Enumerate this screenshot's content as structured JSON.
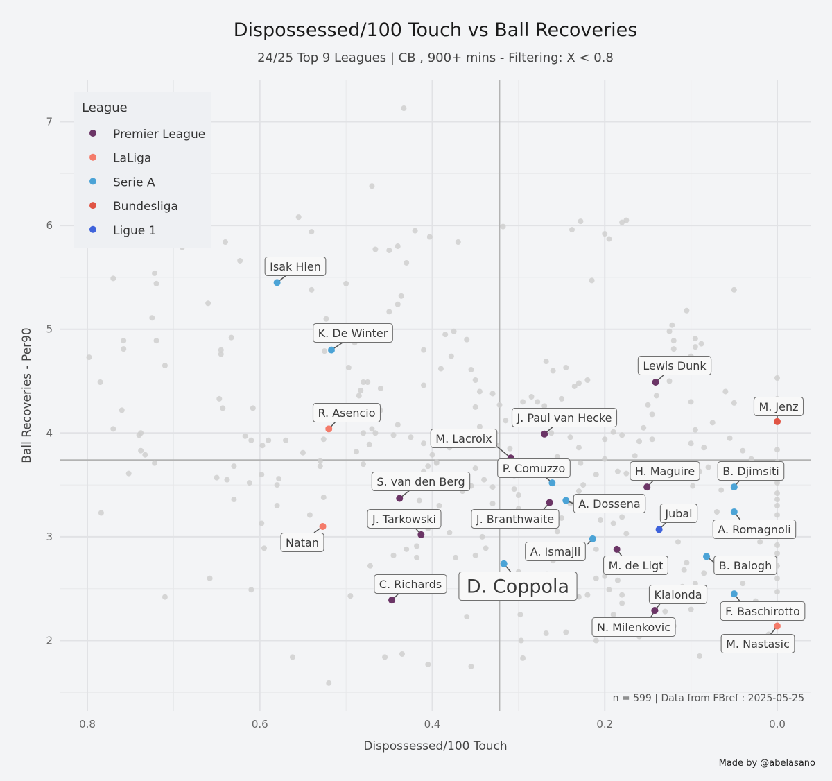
{
  "chart_data": {
    "type": "scatter",
    "title": "Dispossessed/100 Touch  vs  Ball Recoveries",
    "subtitle": "24/25 Top 9 Leagues | CB , 900+ mins - Filtering: X < 0.8",
    "xlabel": "Dispossessed/100 Touch",
    "ylabel": "Ball Recoveries  -  Per90",
    "x_reversed": true,
    "xlim": [
      0.8,
      0.0
    ],
    "ylim": [
      1.5,
      7.3
    ],
    "x_ticks": [
      0.8,
      0.6,
      0.4,
      0.2,
      0.0
    ],
    "x_tick_labels": [
      "0.8",
      "0.6",
      "0.4",
      "0.2",
      "0.0"
    ],
    "y_ticks": [
      2,
      3,
      4,
      5,
      6,
      7
    ],
    "y_tick_labels": [
      "2",
      "3",
      "4",
      "5",
      "6",
      "7"
    ],
    "grid": true,
    "reference_lines": {
      "x": 0.322,
      "y": 3.74
    },
    "legend_title": "League",
    "legend_position": "top-left",
    "legend": [
      {
        "name": "Premier League",
        "color": "#6b3566"
      },
      {
        "name": "LaLiga",
        "color": "#f47b6a"
      },
      {
        "name": "Serie A",
        "color": "#4ba3d6"
      },
      {
        "name": "Bundesliga",
        "color": "#e05444"
      },
      {
        "name": "Ligue 1",
        "color": "#3f63db"
      }
    ],
    "background_color": "#cfcfcf",
    "labeled_players": [
      {
        "name": "Isak Hien",
        "league": "Serie A",
        "x": 0.58,
        "y": 5.45
      },
      {
        "name": "K. De Winter",
        "league": "Serie A",
        "x": 0.517,
        "y": 4.8
      },
      {
        "name": "R. Asencio",
        "league": "LaLiga",
        "x": 0.52,
        "y": 4.04
      },
      {
        "name": "Natan",
        "league": "LaLiga",
        "x": 0.527,
        "y": 3.1
      },
      {
        "name": "S. van den Berg",
        "league": "Premier League",
        "x": 0.438,
        "y": 3.37
      },
      {
        "name": "J. Tarkowski",
        "league": "Premier League",
        "x": 0.413,
        "y": 3.02
      },
      {
        "name": "C. Richards",
        "league": "Premier League",
        "x": 0.447,
        "y": 2.39
      },
      {
        "name": "M. Lacroix",
        "league": "Premier League",
        "x": 0.309,
        "y": 3.76
      },
      {
        "name": "J. Paul van Hecke",
        "league": "Premier League",
        "x": 0.27,
        "y": 3.99
      },
      {
        "name": "P. Comuzzo",
        "league": "Serie A",
        "x": 0.261,
        "y": 3.52
      },
      {
        "name": "J. Branthwaite",
        "league": "Premier League",
        "x": 0.264,
        "y": 3.33
      },
      {
        "name": "A. Dossena",
        "league": "Serie A",
        "x": 0.245,
        "y": 3.35
      },
      {
        "name": "A. Ismajli",
        "league": "Serie A",
        "x": 0.214,
        "y": 2.98
      },
      {
        "name": "D. Coppola",
        "league": "Serie A",
        "x": 0.317,
        "y": 2.74
      },
      {
        "name": "Lewis Dunk",
        "league": "Premier League",
        "x": 0.141,
        "y": 4.49
      },
      {
        "name": "M. Jenz",
        "league": "Bundesliga",
        "x": 0.0,
        "y": 4.11
      },
      {
        "name": "H. Maguire",
        "league": "Premier League",
        "x": 0.151,
        "y": 3.48
      },
      {
        "name": "B. Djimsiti",
        "league": "Serie A",
        "x": 0.05,
        "y": 3.48
      },
      {
        "name": "Jubal",
        "league": "Ligue 1",
        "x": 0.137,
        "y": 3.07
      },
      {
        "name": "A. Romagnoli",
        "league": "Serie A",
        "x": 0.05,
        "y": 3.24
      },
      {
        "name": "M. de Ligt",
        "league": "Premier League",
        "x": 0.186,
        "y": 2.88
      },
      {
        "name": "B. Balogh",
        "league": "Serie A",
        "x": 0.082,
        "y": 2.81
      },
      {
        "name": "Kialonda",
        "league": "Premier League",
        "x": 0.142,
        "y": 2.29
      },
      {
        "name": "N. Milenkovic",
        "league": "Premier League",
        "x": 0.142,
        "y": 2.29
      },
      {
        "name": "F. Baschirotto",
        "league": "Serie A",
        "x": 0.05,
        "y": 2.45
      },
      {
        "name": "M. Nastasic",
        "league": "LaLiga",
        "x": 0.0,
        "y": 2.14
      }
    ],
    "other_players": [
      [
        0.77,
        5.49
      ],
      [
        0.798,
        4.73
      ],
      [
        0.785,
        4.49
      ],
      [
        0.758,
        4.89
      ],
      [
        0.758,
        4.81
      ],
      [
        0.77,
        4.04
      ],
      [
        0.76,
        4.22
      ],
      [
        0.752,
        3.61
      ],
      [
        0.74,
        3.98
      ],
      [
        0.738,
        4.0
      ],
      [
        0.738,
        3.83
      ],
      [
        0.733,
        3.79
      ],
      [
        0.722,
        3.71
      ],
      [
        0.784,
        3.23
      ],
      [
        0.725,
        5.11
      ],
      [
        0.72,
        5.44
      ],
      [
        0.722,
        5.54
      ],
      [
        0.72,
        4.89
      ],
      [
        0.71,
        4.65
      ],
      [
        0.71,
        2.42
      ],
      [
        0.69,
        5.79
      ],
      [
        0.66,
        5.25
      ],
      [
        0.64,
        5.84
      ],
      [
        0.645,
        4.8
      ],
      [
        0.645,
        4.76
      ],
      [
        0.647,
        4.33
      ],
      [
        0.643,
        4.24
      ],
      [
        0.633,
        4.92
      ],
      [
        0.623,
        5.66
      ],
      [
        0.638,
        3.55
      ],
      [
        0.63,
        3.68
      ],
      [
        0.617,
        3.97
      ],
      [
        0.608,
        4.24
      ],
      [
        0.61,
        3.93
      ],
      [
        0.597,
        3.88
      ],
      [
        0.598,
        3.6
      ],
      [
        0.59,
        3.93
      ],
      [
        0.612,
        3.52
      ],
      [
        0.598,
        3.13
      ],
      [
        0.595,
        2.89
      ],
      [
        0.61,
        2.49
      ],
      [
        0.555,
        6.08
      ],
      [
        0.54,
        5.94
      ],
      [
        0.54,
        5.38
      ],
      [
        0.523,
        5.1
      ],
      [
        0.525,
        4.79
      ],
      [
        0.526,
        3.94
      ],
      [
        0.528,
        4.26
      ],
      [
        0.52,
        4.16
      ],
      [
        0.53,
        3.73
      ],
      [
        0.53,
        3.68
      ],
      [
        0.526,
        3.38
      ],
      [
        0.542,
        3.21
      ],
      [
        0.55,
        3.81
      ],
      [
        0.57,
        3.93
      ],
      [
        0.578,
        3.56
      ],
      [
        0.58,
        3.5
      ],
      [
        0.58,
        3.3
      ],
      [
        0.488,
        3.82
      ],
      [
        0.48,
        3.7
      ],
      [
        0.47,
        6.38
      ],
      [
        0.466,
        5.77
      ],
      [
        0.44,
        5.8
      ],
      [
        0.45,
        5.76
      ],
      [
        0.42,
        5.95
      ],
      [
        0.403,
        5.89
      ],
      [
        0.43,
        5.64
      ],
      [
        0.44,
        5.24
      ],
      [
        0.436,
        5.32
      ],
      [
        0.45,
        5.17
      ],
      [
        0.466,
        4.95
      ],
      [
        0.49,
        4.87
      ],
      [
        0.5,
        5.44
      ],
      [
        0.497,
        4.63
      ],
      [
        0.48,
        4.49
      ],
      [
        0.475,
        4.49
      ],
      [
        0.483,
        4.41
      ],
      [
        0.485,
        4.36
      ],
      [
        0.473,
        4.23
      ],
      [
        0.46,
        4.43
      ],
      [
        0.46,
        4.22
      ],
      [
        0.473,
        3.89
      ],
      [
        0.48,
        4.0
      ],
      [
        0.47,
        4.04
      ],
      [
        0.466,
        4.0
      ],
      [
        0.445,
        3.98
      ],
      [
        0.425,
        3.96
      ],
      [
        0.41,
        3.9
      ],
      [
        0.4,
        3.79
      ],
      [
        0.395,
        3.72
      ],
      [
        0.405,
        3.68
      ],
      [
        0.41,
        3.63
      ],
      [
        0.425,
        3.6
      ],
      [
        0.436,
        3.57
      ],
      [
        0.445,
        3.5
      ],
      [
        0.415,
        3.35
      ],
      [
        0.392,
        3.3
      ],
      [
        0.405,
        3.08
      ],
      [
        0.38,
        3.04
      ],
      [
        0.373,
        2.8
      ],
      [
        0.35,
        2.82
      ],
      [
        0.338,
        2.89
      ],
      [
        0.36,
        2.23
      ],
      [
        0.418,
        2.8
      ],
      [
        0.445,
        2.82
      ],
      [
        0.472,
        2.72
      ],
      [
        0.495,
        2.43
      ],
      [
        0.43,
        2.88
      ],
      [
        0.418,
        2.91
      ],
      [
        0.45,
        3.5
      ],
      [
        0.44,
        4.08
      ],
      [
        0.41,
        4.46
      ],
      [
        0.41,
        4.8
      ],
      [
        0.39,
        4.62
      ],
      [
        0.385,
        4.95
      ],
      [
        0.378,
        4.74
      ],
      [
        0.375,
        4.98
      ],
      [
        0.36,
        4.9
      ],
      [
        0.355,
        4.61
      ],
      [
        0.35,
        4.51
      ],
      [
        0.345,
        4.4
      ],
      [
        0.35,
        4.25
      ],
      [
        0.345,
        4.06
      ],
      [
        0.33,
        4.38
      ],
      [
        0.322,
        4.27
      ],
      [
        0.315,
        4.12
      ],
      [
        0.325,
        3.88
      ],
      [
        0.335,
        3.9
      ],
      [
        0.345,
        3.97
      ],
      [
        0.357,
        3.9
      ],
      [
        0.365,
        3.91
      ],
      [
        0.375,
        3.93
      ],
      [
        0.38,
        3.86
      ],
      [
        0.39,
        3.88
      ],
      [
        0.395,
        3.6
      ],
      [
        0.385,
        3.55
      ],
      [
        0.395,
        3.71
      ],
      [
        0.365,
        3.44
      ],
      [
        0.355,
        3.49
      ],
      [
        0.35,
        3.66
      ],
      [
        0.34,
        3.55
      ],
      [
        0.33,
        3.32
      ],
      [
        0.342,
        3.0
      ],
      [
        0.33,
        3.48
      ],
      [
        0.31,
        3.85
      ],
      [
        0.318,
        3.62
      ],
      [
        0.305,
        3.59
      ],
      [
        0.305,
        3.46
      ],
      [
        0.3,
        3.4
      ],
      [
        0.3,
        3.27
      ],
      [
        0.29,
        3.6
      ],
      [
        0.295,
        4.3
      ],
      [
        0.285,
        4.35
      ],
      [
        0.278,
        4.3
      ],
      [
        0.27,
        4.26
      ],
      [
        0.262,
        4.0
      ],
      [
        0.268,
        4.69
      ],
      [
        0.26,
        4.6
      ],
      [
        0.245,
        4.63
      ],
      [
        0.235,
        4.45
      ],
      [
        0.23,
        4.48
      ],
      [
        0.22,
        4.51
      ],
      [
        0.25,
        4.33
      ],
      [
        0.24,
        4.11
      ],
      [
        0.255,
        3.77
      ],
      [
        0.24,
        3.96
      ],
      [
        0.23,
        3.86
      ],
      [
        0.228,
        3.71
      ],
      [
        0.225,
        3.5
      ],
      [
        0.23,
        3.44
      ],
      [
        0.24,
        3.32
      ],
      [
        0.25,
        3.18
      ],
      [
        0.255,
        3.05
      ],
      [
        0.26,
        2.77
      ],
      [
        0.267,
        2.64
      ],
      [
        0.275,
        2.5
      ],
      [
        0.282,
        2.42
      ],
      [
        0.29,
        2.6
      ],
      [
        0.3,
        2.66
      ],
      [
        0.305,
        2.54
      ],
      [
        0.31,
        2.55
      ],
      [
        0.298,
        2.25
      ],
      [
        0.295,
        1.83
      ],
      [
        0.268,
        2.07
      ],
      [
        0.245,
        2.08
      ],
      [
        0.22,
        2.44
      ],
      [
        0.21,
        2.6
      ],
      [
        0.2,
        2.62
      ],
      [
        0.195,
        2.49
      ],
      [
        0.185,
        2.58
      ],
      [
        0.18,
        2.44
      ],
      [
        0.21,
        2.88
      ],
      [
        0.205,
        3.16
      ],
      [
        0.2,
        3.32
      ],
      [
        0.19,
        3.26
      ],
      [
        0.19,
        3.13
      ],
      [
        0.18,
        3.19
      ],
      [
        0.175,
        3.03
      ],
      [
        0.2,
        3.75
      ],
      [
        0.21,
        3.6
      ],
      [
        0.185,
        3.63
      ],
      [
        0.175,
        3.61
      ],
      [
        0.2,
        3.94
      ],
      [
        0.19,
        4.01
      ],
      [
        0.18,
        3.98
      ],
      [
        0.165,
        3.78
      ],
      [
        0.16,
        3.92
      ],
      [
        0.155,
        4.05
      ],
      [
        0.145,
        3.94
      ],
      [
        0.145,
        4.18
      ],
      [
        0.15,
        4.27
      ],
      [
        0.14,
        4.36
      ],
      [
        0.125,
        4.5
      ],
      [
        0.13,
        4.59
      ],
      [
        0.12,
        4.81
      ],
      [
        0.12,
        4.89
      ],
      [
        0.125,
        4.98
      ],
      [
        0.122,
        5.04
      ],
      [
        0.105,
        5.18
      ],
      [
        0.1,
        4.74
      ],
      [
        0.095,
        4.83
      ],
      [
        0.095,
        4.91
      ],
      [
        0.088,
        4.86
      ],
      [
        0.1,
        4.6
      ],
      [
        0.1,
        4.3
      ],
      [
        0.095,
        4.03
      ],
      [
        0.1,
        3.9
      ],
      [
        0.085,
        3.86
      ],
      [
        0.075,
        4.1
      ],
      [
        0.08,
        3.67
      ],
      [
        0.09,
        3.63
      ],
      [
        0.098,
        3.49
      ],
      [
        0.11,
        3.2
      ],
      [
        0.115,
        2.95
      ],
      [
        0.105,
        2.75
      ],
      [
        0.108,
        2.68
      ],
      [
        0.11,
        2.52
      ],
      [
        0.095,
        2.55
      ],
      [
        0.1,
        2.4
      ],
      [
        0.085,
        2.65
      ],
      [
        0.1,
        2.3
      ],
      [
        0.12,
        2.14
      ],
      [
        0.13,
        2.28
      ],
      [
        0.16,
        2.04
      ],
      [
        0.18,
        2.36
      ],
      [
        0.19,
        2.25
      ],
      [
        0.205,
        2.2
      ],
      [
        0.21,
        2.0
      ],
      [
        0.23,
        2.42
      ],
      [
        0.235,
        2.5
      ],
      [
        0.05,
        5.38
      ],
      [
        0.06,
        4.4
      ],
      [
        0.05,
        4.29
      ],
      [
        0.055,
        3.95
      ],
      [
        0.04,
        3.83
      ],
      [
        0.06,
        3.66
      ],
      [
        0.04,
        3.59
      ],
      [
        0.03,
        3.75
      ],
      [
        0.065,
        3.45
      ],
      [
        0.07,
        3.24
      ],
      [
        0.07,
        3.09
      ],
      [
        0.06,
        3.05
      ],
      [
        0.03,
        3.1
      ],
      [
        0.02,
        2.95
      ],
      [
        0.05,
        2.7
      ],
      [
        0.04,
        2.55
      ],
      [
        0.025,
        2.38
      ],
      [
        0.01,
        2.06
      ],
      [
        0.09,
        1.85
      ],
      [
        0.0,
        4.53
      ],
      [
        0.0,
        4.33
      ],
      [
        0.0,
        3.84
      ],
      [
        0.0,
        3.72
      ],
      [
        0.0,
        3.65
      ],
      [
        0.0,
        3.58
      ],
      [
        0.0,
        3.52
      ],
      [
        0.0,
        3.42
      ],
      [
        0.0,
        3.36
      ],
      [
        0.0,
        3.3
      ],
      [
        0.0,
        3.21
      ],
      [
        0.0,
        3.11
      ],
      [
        0.0,
        3.02
      ],
      [
        0.0,
        2.92
      ],
      [
        0.0,
        2.84
      ],
      [
        0.0,
        2.72
      ],
      [
        0.0,
        2.6
      ],
      [
        0.0,
        2.47
      ],
      [
        0.0,
        2.35
      ],
      [
        0.0,
        2.22
      ],
      [
        0.18,
        6.03
      ],
      [
        0.175,
        6.05
      ],
      [
        0.2,
        5.92
      ],
      [
        0.195,
        5.87
      ],
      [
        0.228,
        6.04
      ],
      [
        0.238,
        5.96
      ],
      [
        0.215,
        5.47
      ],
      [
        0.318,
        5.99
      ],
      [
        0.37,
        5.84
      ],
      [
        0.433,
        7.13
      ],
      [
        0.405,
        1.77
      ],
      [
        0.435,
        1.87
      ],
      [
        0.355,
        1.75
      ],
      [
        0.297,
        2.0
      ],
      [
        0.52,
        1.59
      ],
      [
        0.455,
        1.84
      ],
      [
        0.562,
        1.84
      ],
      [
        0.63,
        3.36
      ],
      [
        0.658,
        2.6
      ],
      [
        0.65,
        3.57
      ]
    ]
  },
  "note": "n =  599  | Data from  FBref : 2025-05-25",
  "credit": "Made by @abelasano"
}
